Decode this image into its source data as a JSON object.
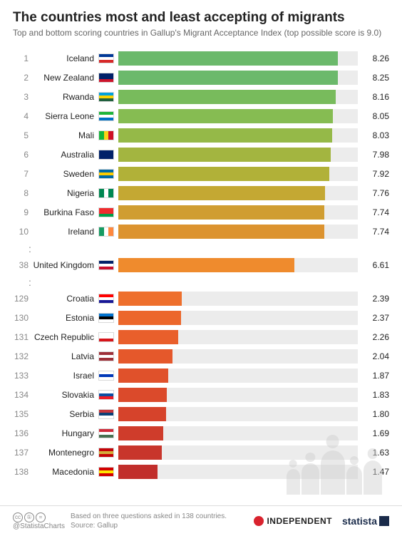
{
  "title": "The countries most and least accepting of migrants",
  "subtitle": "Top and bottom scoring countries in Gallup's Migrant Acceptance Index (top possible score is 9.0)",
  "max_score": 9.0,
  "bar_track_color": "#ececec",
  "background_color": "#ffffff",
  "rows": [
    {
      "rank": 1,
      "country": "Iceland",
      "value": 8.26,
      "color": "#6bb96b",
      "flag": [
        "#003897",
        "#ffffff",
        "#d72828"
      ]
    },
    {
      "rank": 2,
      "country": "New Zealand",
      "value": 8.25,
      "color": "#6bb96b",
      "flag": [
        "#012169",
        "#012169",
        "#cc142b"
      ]
    },
    {
      "rank": 3,
      "country": "Rwanda",
      "value": 8.16,
      "color": "#78bb5c",
      "flag": [
        "#00a1de",
        "#fad201",
        "#20603d"
      ]
    },
    {
      "rank": 4,
      "country": "Sierra Leone",
      "value": 8.05,
      "color": "#86bc52",
      "flag": [
        "#1eb53a",
        "#ffffff",
        "#0072c6"
      ]
    },
    {
      "rank": 5,
      "country": "Mali",
      "value": 8.03,
      "color": "#95b948",
      "flag": [
        "#14b53a",
        "#fcd116",
        "#ce1126"
      ],
      "vertical": true
    },
    {
      "rank": 6,
      "country": "Australia",
      "value": 7.98,
      "color": "#a3b540",
      "flag": [
        "#012169",
        "#012169",
        "#012169"
      ]
    },
    {
      "rank": 7,
      "country": "Sweden",
      "value": 7.92,
      "color": "#b1b138",
      "flag": [
        "#006aa7",
        "#fecc00",
        "#006aa7"
      ]
    },
    {
      "rank": 8,
      "country": "Nigeria",
      "value": 7.76,
      "color": "#c4a833",
      "flag": [
        "#008751",
        "#ffffff",
        "#008751"
      ],
      "vertical": true
    },
    {
      "rank": 9,
      "country": "Burkina Faso",
      "value": 7.74,
      "color": "#d09d31",
      "flag": [
        "#ef2b2d",
        "#ef2b2d",
        "#009e49"
      ]
    },
    {
      "rank": 10,
      "country": "Ireland",
      "value": 7.74,
      "color": "#dc932f",
      "flag": [
        "#169b62",
        "#ffffff",
        "#ff883e"
      ],
      "vertical": true
    }
  ],
  "mid": {
    "rank": 38,
    "country": "United Kingdom",
    "value": 6.61,
    "color": "#ef8b2d",
    "flag": [
      "#012169",
      "#ffffff",
      "#c8102e"
    ]
  },
  "bottom": [
    {
      "rank": 129,
      "country": "Croatia",
      "value": 2.39,
      "color": "#ee6f2c",
      "flag": [
        "#ff0000",
        "#ffffff",
        "#171796"
      ]
    },
    {
      "rank": 130,
      "country": "Estonia",
      "value": 2.37,
      "color": "#ec672b",
      "flag": [
        "#0072ce",
        "#000000",
        "#ffffff"
      ]
    },
    {
      "rank": 131,
      "country": "Czech Republic",
      "value": 2.26,
      "color": "#e95f2b",
      "flag": [
        "#ffffff",
        "#ffffff",
        "#d7141a"
      ]
    },
    {
      "rank": 132,
      "country": "Latvia",
      "value": 2.04,
      "color": "#e5582b",
      "flag": [
        "#9e3039",
        "#ffffff",
        "#9e3039"
      ]
    },
    {
      "rank": 133,
      "country": "Israel",
      "value": 1.87,
      "color": "#e0512b",
      "flag": [
        "#ffffff",
        "#0038b8",
        "#ffffff"
      ]
    },
    {
      "rank": 134,
      "country": "Slovakia",
      "value": 1.83,
      "color": "#db4a2b",
      "flag": [
        "#ffffff",
        "#0b4ea2",
        "#ee1c25"
      ]
    },
    {
      "rank": 135,
      "country": "Serbia",
      "value": 1.8,
      "color": "#d6432b",
      "flag": [
        "#c6363c",
        "#0c4076",
        "#ffffff"
      ]
    },
    {
      "rank": 136,
      "country": "Hungary",
      "value": 1.69,
      "color": "#cf3c2b",
      "flag": [
        "#ce2939",
        "#ffffff",
        "#477050"
      ]
    },
    {
      "rank": 137,
      "country": "Montenegro",
      "value": 1.63,
      "color": "#c8352b",
      "flag": [
        "#c40308",
        "#d3ae3b",
        "#c40308"
      ]
    },
    {
      "rank": 138,
      "country": "Macedonia",
      "value": 1.47,
      "color": "#c12e2b",
      "flag": [
        "#d20000",
        "#ffe600",
        "#d20000"
      ]
    }
  ],
  "silhouette_heights": [
    36,
    44,
    62,
    40,
    48
  ],
  "footer": {
    "handle": "@StatistaCharts",
    "note1": "Based on three questions asked in 138 countries.",
    "note2": "Source: Gallup",
    "indep": "INDEPENDENT",
    "statista": "statista"
  }
}
